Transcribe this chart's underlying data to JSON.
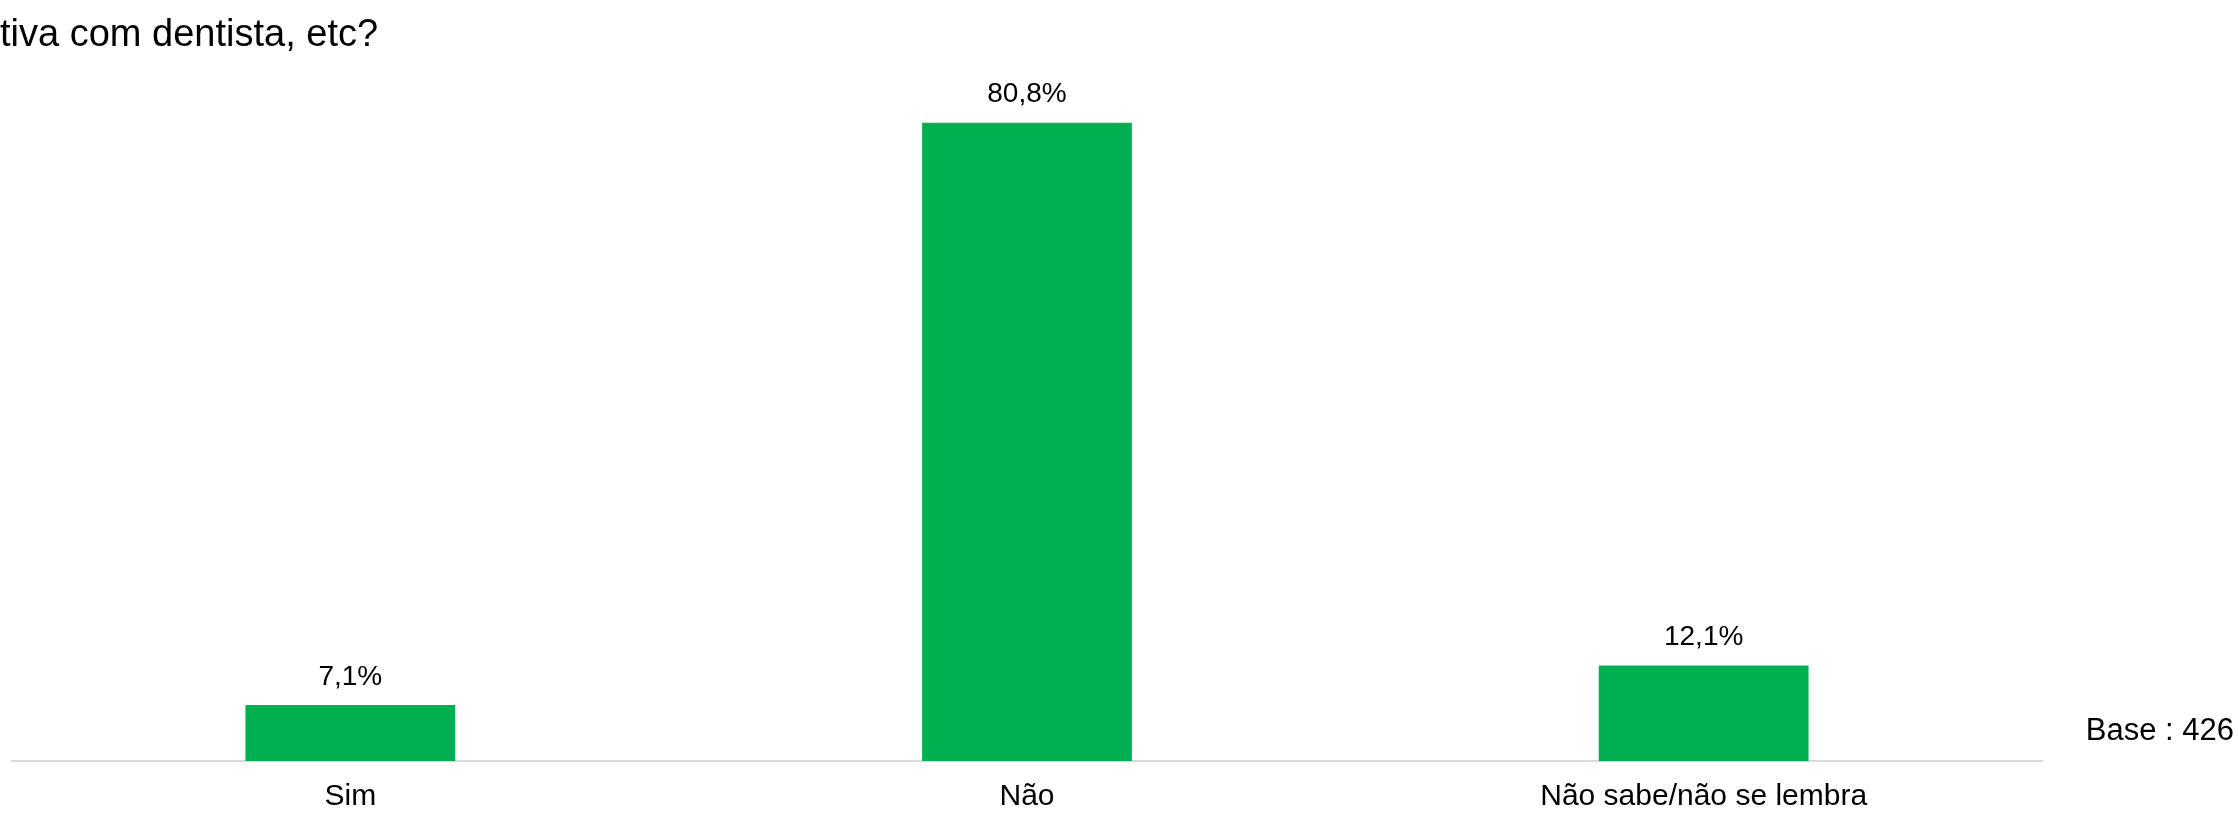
{
  "chart_data": {
    "type": "bar",
    "title": "tiva com dentista, etc?",
    "categories": [
      "Sim",
      "Não",
      "Não sabe/não se lembra"
    ],
    "values": [
      7.1,
      80.8,
      12.1
    ],
    "value_labels": [
      "7,1%",
      "80,8%",
      "12,1%"
    ],
    "color": "#00b050",
    "grid": false,
    "legend": false,
    "annotations": [
      "Base : 426"
    ]
  }
}
